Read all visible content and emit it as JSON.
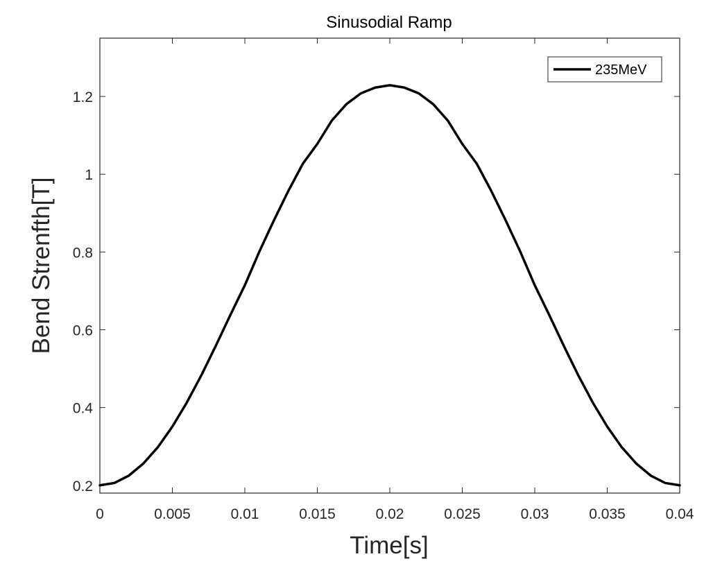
{
  "chart_data": {
    "type": "line",
    "title": "Sinusodial Ramp",
    "xlabel": "Time[s]",
    "ylabel": "Bend Strenfth[T]",
    "xlim": [
      0,
      0.04
    ],
    "ylim": [
      0.18,
      1.35
    ],
    "xticks": [
      0,
      0.005,
      0.01,
      0.015,
      0.02,
      0.025,
      0.03,
      0.035,
      0.04
    ],
    "xtick_labels": [
      "0",
      "0.005",
      "0.01",
      "0.015",
      "0.02",
      "0.025",
      "0.03",
      "0.035",
      "0.04"
    ],
    "yticks": [
      0.2,
      0.4,
      0.6,
      0.8,
      1.0,
      1.2
    ],
    "ytick_labels": [
      "0.2",
      "0.4",
      "0.6",
      "0.8",
      "1",
      "1.2"
    ],
    "grid": false,
    "legend_position": "top-right",
    "series": [
      {
        "name": "235MeV",
        "color": "#000000",
        "x": [
          0,
          0.001,
          0.002,
          0.003,
          0.004,
          0.005,
          0.006,
          0.007,
          0.008,
          0.009,
          0.01,
          0.011,
          0.012,
          0.013,
          0.014,
          0.015,
          0.016,
          0.017,
          0.018,
          0.019,
          0.02,
          0.021,
          0.022,
          0.023,
          0.024,
          0.025,
          0.026,
          0.027,
          0.028,
          0.029,
          0.03,
          0.031,
          0.032,
          0.033,
          0.034,
          0.035,
          0.036,
          0.037,
          0.038,
          0.039,
          0.04
        ],
        "y": [
          0.2,
          0.206,
          0.225,
          0.256,
          0.298,
          0.351,
          0.413,
          0.483,
          0.559,
          0.638,
          0.7145,
          0.801,
          0.881,
          0.957,
          1.027,
          1.078,
          1.138,
          1.18,
          1.208,
          1.223,
          1.229,
          1.223,
          1.208,
          1.18,
          1.138,
          1.078,
          1.027,
          0.957,
          0.881,
          0.801,
          0.7145,
          0.638,
          0.559,
          0.483,
          0.413,
          0.351,
          0.298,
          0.256,
          0.225,
          0.206,
          0.2
        ]
      }
    ]
  }
}
